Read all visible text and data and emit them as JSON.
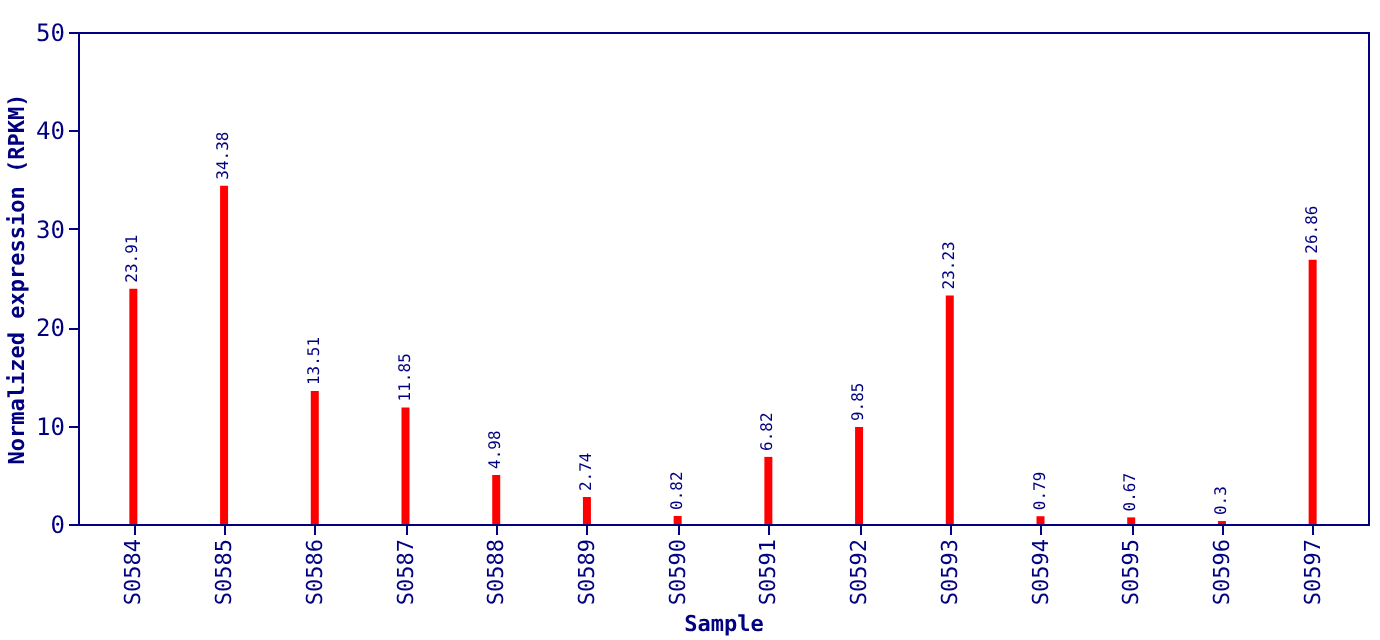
{
  "chart_data": {
    "type": "bar",
    "categories": [
      "S0584",
      "S0585",
      "S0586",
      "S0587",
      "S0588",
      "S0589",
      "S0590",
      "S0591",
      "S0592",
      "S0593",
      "S0594",
      "S0595",
      "S0596",
      "S0597"
    ],
    "values": [
      23.91,
      34.38,
      13.51,
      11.85,
      4.98,
      2.74,
      0.82,
      6.82,
      9.85,
      23.23,
      0.79,
      0.67,
      0.3,
      26.86
    ],
    "color": "#ff0000",
    "xlabel": "Sample",
    "ylabel": "Normalized expression (RPKM)",
    "ylim": [
      0,
      50
    ],
    "yticks": [
      0,
      10,
      20,
      30,
      40,
      50
    ],
    "data_labels": true,
    "grid": false
  }
}
